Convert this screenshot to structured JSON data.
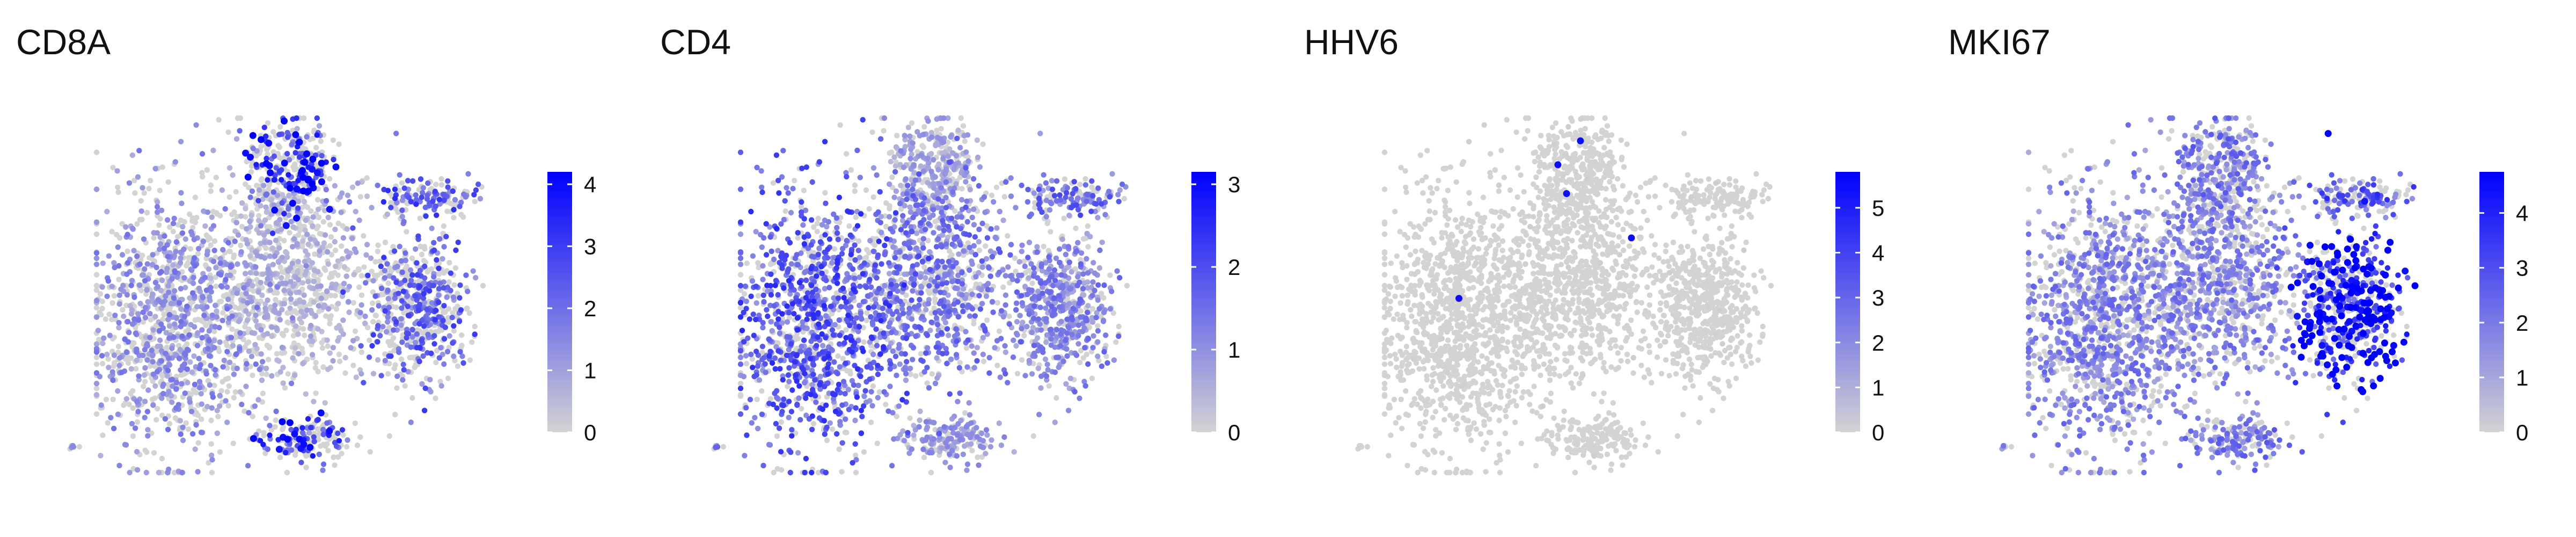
{
  "colors": {
    "low": "#d3d3d3",
    "high": "#0000ff"
  },
  "chart_data": [
    {
      "type": "scatter",
      "title": "CD8A",
      "legend_max": 4.2,
      "ticks": [
        0,
        1,
        2,
        3,
        4
      ]
    },
    {
      "type": "scatter",
      "title": "CD4",
      "legend_max": 3.15,
      "ticks": [
        0,
        1,
        2,
        3
      ]
    },
    {
      "type": "scatter",
      "title": "HHV6",
      "legend_max": 5.8,
      "ticks": [
        0,
        1,
        2,
        3,
        4,
        5
      ]
    },
    {
      "type": "scatter",
      "title": "MKI67",
      "legend_max": 4.75,
      "ticks": [
        0,
        1,
        2,
        3,
        4
      ]
    }
  ]
}
